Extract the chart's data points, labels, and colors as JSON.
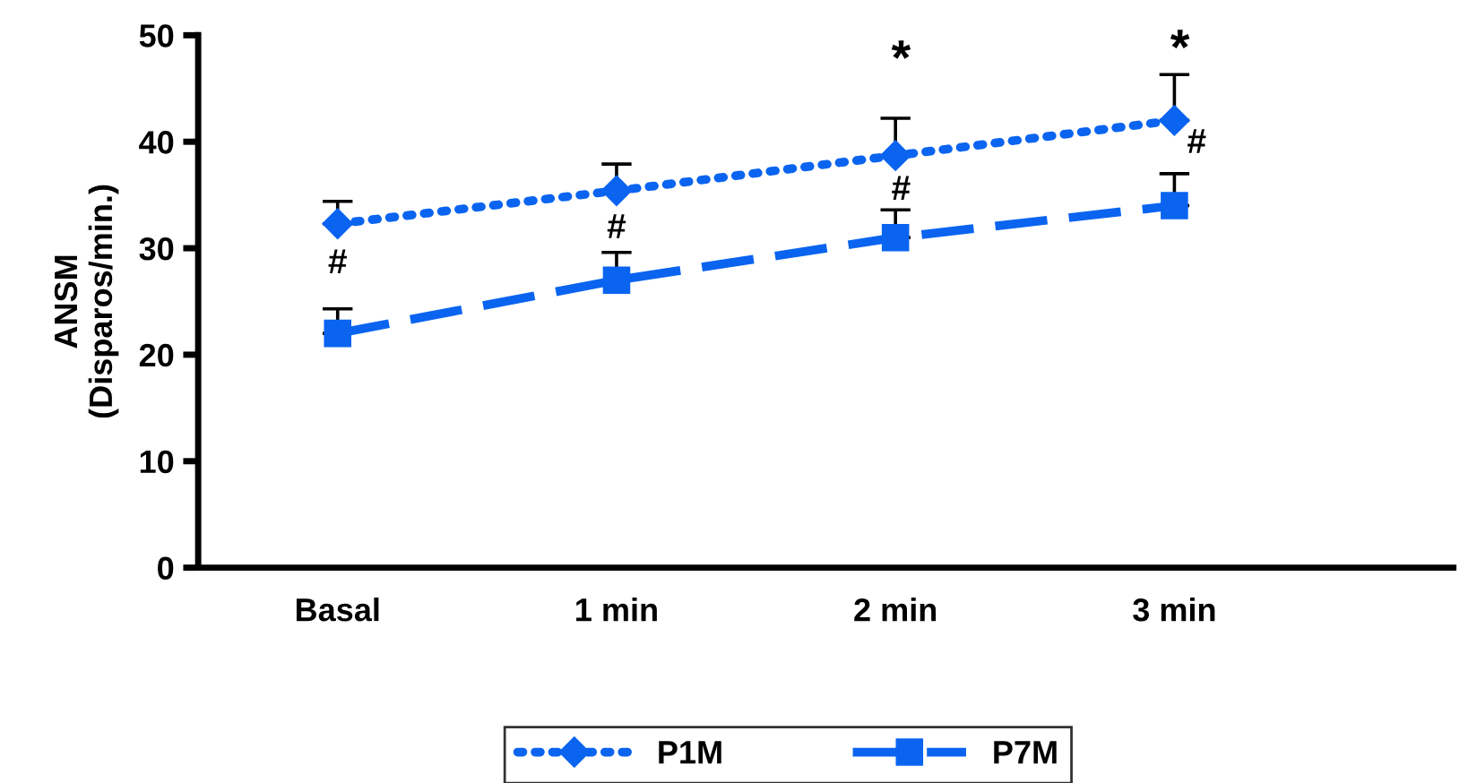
{
  "chart_data": {
    "type": "line",
    "ylabel": "ANSM\n(Disparos/min.)",
    "categories": [
      "Basal",
      "1 min",
      "2 min",
      "3 min"
    ],
    "series": [
      {
        "name": "P1M",
        "color": "#0a64f0",
        "marker": "diamond",
        "line_style": "dotted",
        "values": [
          32.3,
          35.4,
          38.7,
          42.0
        ],
        "errors": [
          [
            32.3,
            34.4
          ],
          [
            35.4,
            37.9
          ],
          [
            38.7,
            42.2
          ],
          [
            42.0,
            46.3
          ]
        ]
      },
      {
        "name": "P7M",
        "color": "#0a64f0",
        "marker": "square",
        "line_style": "dashed",
        "values": [
          22.0,
          27.0,
          31.0,
          34.0
        ],
        "errors": [
          [
            22.0,
            24.3
          ],
          [
            27.0,
            29.6
          ],
          [
            31.0,
            33.6
          ],
          [
            34.0,
            37.0
          ]
        ]
      }
    ],
    "annotations": [
      "*",
      "*",
      "#",
      "#",
      "#",
      "#"
    ],
    "ylim": [
      0,
      50
    ],
    "yticks": [
      0,
      10,
      20,
      30,
      40,
      50
    ],
    "grid": false,
    "legend": "bottom"
  }
}
